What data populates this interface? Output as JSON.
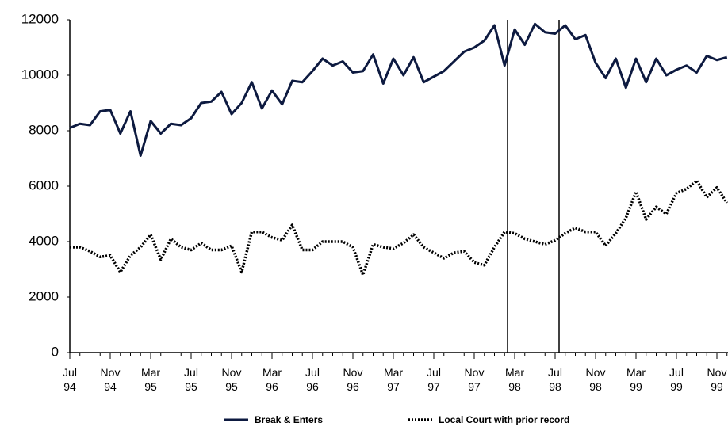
{
  "chart_data": {
    "type": "line",
    "categories": [
      "Jul 94",
      null,
      null,
      null,
      "Nov 94",
      null,
      null,
      null,
      "Mar 95",
      null,
      null,
      null,
      "Jul 95",
      null,
      null,
      null,
      "Nov 95",
      null,
      null,
      null,
      "Mar 96",
      null,
      null,
      null,
      "Jul 96",
      null,
      null,
      null,
      "Nov 96",
      null,
      null,
      null,
      "Mar 97",
      null,
      null,
      null,
      "Jul 97",
      null,
      null,
      null,
      "Nov 97",
      null,
      null,
      null,
      "Mar 98",
      null,
      null,
      null,
      "Jul 98",
      null,
      null,
      null,
      "Nov 98",
      null,
      null,
      null,
      "Mar 99",
      null,
      null,
      null,
      "Jul 99",
      null,
      null,
      null,
      "Nov 99",
      null
    ],
    "series": [
      {
        "name": "Break & Enters",
        "color": "#0d1a40",
        "dash": "solid",
        "values": [
          8100,
          8250,
          8200,
          8700,
          8750,
          7900,
          8700,
          7100,
          8350,
          7900,
          8250,
          8200,
          8450,
          9000,
          9050,
          9400,
          8600,
          9000,
          9750,
          8800,
          9450,
          8950,
          9800,
          9750,
          10150,
          10600,
          10350,
          10500,
          10100,
          10150,
          10750,
          9700,
          10600,
          10000,
          10650,
          9750,
          9950,
          10150,
          10500,
          10850,
          11000,
          11250,
          11800,
          10350,
          11650,
          11100,
          11850,
          11550,
          11500,
          11800,
          11300,
          11450,
          10450,
          9900,
          10600,
          9550,
          10600,
          9750,
          10600,
          10000,
          10200,
          10350,
          10100,
          10700,
          10550,
          10650
        ]
      },
      {
        "name": "Local Court with prior record",
        "color": "#000000",
        "dash": "dotted",
        "values": [
          3800,
          3800,
          3650,
          3450,
          3500,
          2900,
          3500,
          3800,
          4250,
          3350,
          4100,
          3800,
          3700,
          3950,
          3700,
          3700,
          3850,
          2900,
          4350,
          4350,
          4150,
          4050,
          4600,
          3700,
          3700,
          4000,
          4000,
          4000,
          3800,
          2800,
          3900,
          3800,
          3750,
          3950,
          4250,
          3800,
          3600,
          3400,
          3600,
          3650,
          3250,
          3150,
          3800,
          4350,
          4300,
          4100,
          4000,
          3900,
          4050,
          4300,
          4500,
          4350,
          4350,
          3850,
          4300,
          4850,
          5800,
          4800,
          5250,
          5000,
          5750,
          5900,
          6200,
          5600,
          5950,
          5400
        ]
      }
    ],
    "ylim": [
      0,
      12000
    ],
    "yticks": [
      0,
      2000,
      4000,
      6000,
      8000,
      10000,
      12000
    ],
    "legend": "bottom"
  }
}
